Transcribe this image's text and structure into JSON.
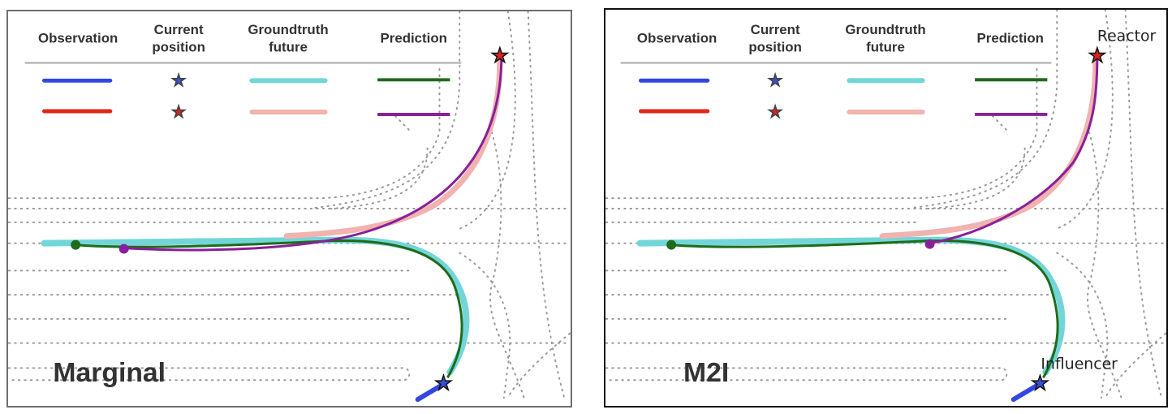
{
  "legend": {
    "observation": "Observation",
    "current_position_line1": "Current",
    "current_position_line2": "position",
    "groundtruth_line1": "Groundtruth",
    "groundtruth_line2": "future",
    "prediction": "Prediction"
  },
  "panels": [
    {
      "title": "Marginal"
    },
    {
      "title": "M2I",
      "reactor_label": "Reactor",
      "influencer_label": "Influencer"
    }
  ],
  "colors": {
    "agent1_observation": "#3347e0",
    "agent1_groundtruth": "#72d6d8",
    "agent1_prediction": "#1f6b1a",
    "agent2_observation": "#e0261c",
    "agent2_groundtruth": "#f0b3b0",
    "agent2_prediction": "#8a1f9a",
    "star_blue": "#3a4fd6",
    "star_red": "#d9241f"
  }
}
